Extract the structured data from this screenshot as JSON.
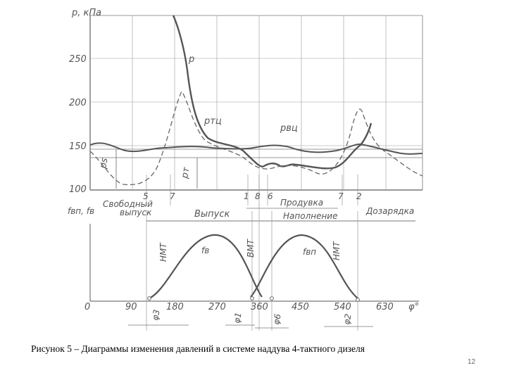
{
  "figure": {
    "top": {
      "y_label": "p, кПа",
      "y_ticks": [
        "250",
        "200",
        "150",
        "100"
      ],
      "curve_labels": {
        "p": "p",
        "p_tc": "pтц",
        "p_vc": "pвц"
      },
      "side_labels": {
        "ps": "ps",
        "pt": "pт"
      },
      "marker_labels": [
        "5",
        "7",
        "1",
        "8",
        "6",
        "7",
        "2"
      ]
    },
    "bottom": {
      "y_label": "fвп, fв",
      "phases": {
        "free_exhaust_1": "Свободный",
        "free_exhaust_2": "выпуск",
        "exhaust": "Выпуск",
        "scavenging": "Продувка",
        "filling": "Наполнение",
        "supercharge": "Дозарядка"
      },
      "bdc_left": "НМТ",
      "tdc": "ВМТ",
      "bdc_right": "НМТ",
      "curve_labels": {
        "fv": "fв",
        "fvp": "fвп"
      },
      "x_ticks": [
        "0",
        "90",
        "180",
        "270",
        "360",
        "450",
        "540",
        "630"
      ],
      "x_label": "φ°",
      "angle_labels": [
        "φ3",
        "φ1",
        "φ6",
        "φ2"
      ]
    }
  },
  "caption": "Рисунок 5 – Диаграммы изменения давлений в системе наддува 4-тактного дизеля",
  "page_number": "12"
}
